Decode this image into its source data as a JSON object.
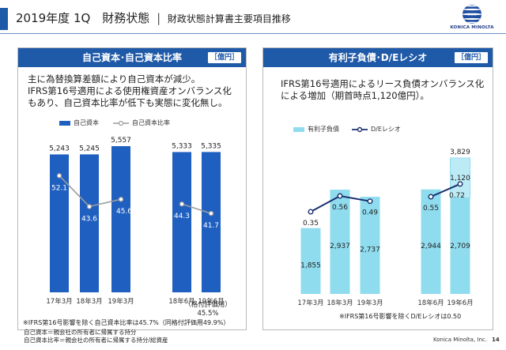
{
  "header": {
    "title": "2019年度 1Q　財務状態",
    "separator": "|",
    "subtitle": "財政状態計算書主要項目推移"
  },
  "logo": {
    "text": "KONICA MINOLTA"
  },
  "left_panel": {
    "title": "自己資本･自己資本比率",
    "unit": "［億円］",
    "text_lines": [
      "主に為替換算差額により自己資本が減少。",
      "IFRS第16号適用による使用権資産オンバランス化",
      "もあり、自己資本比率が低下も実態に変化無し。"
    ],
    "legend_bar": "自己資本",
    "legend_line": "自己資本比率",
    "note_subtitle": "（格付評価用）",
    "note_value": "45.5%",
    "footnote": "※IFRS第16号影響を除く自己資本比率は45.7%（同格付評価用49.9%）"
  },
  "right_panel": {
    "title": "有利子負債･D/Eレシオ",
    "unit": "［億円］",
    "text_lines": [
      "IFRS第16号適用によるリース負債オンバランス化",
      "による増加（期首時点1,120億円）。"
    ],
    "legend_bar": "有利子負債",
    "legend_line": "D/Eレシオ",
    "footnote": "※IFRS第16号影響を除くD/Eレシオは0.50"
  },
  "chart_data": [
    {
      "type": "bar",
      "categories": [
        "17年3月",
        "18年3月",
        "19年3月",
        "18年6月",
        "19年6月"
      ],
      "series": [
        {
          "name": "自己資本",
          "values": [
            5243,
            5245,
            5557,
            5333,
            5335
          ],
          "labels": [
            "5,243",
            "5,245",
            "5,557",
            "5,333",
            "5,335"
          ]
        },
        {
          "name": "自己資本比率",
          "type": "line",
          "values": [
            52.1,
            43.6,
            45.6,
            44.3,
            41.7
          ]
        }
      ],
      "colors": {
        "bar": "#1f5fc0",
        "line": "#9b9b9b"
      }
    },
    {
      "type": "bar",
      "categories": [
        "17年3月",
        "18年3月",
        "19年3月",
        "18年6月",
        "19年6月"
      ],
      "series": [
        {
          "name": "有利子負債",
          "values": [
            1855,
            2937,
            2737,
            2944,
            3829
          ],
          "labels": [
            "1,855",
            "2,937",
            "2,737",
            "2,944",
            "3,829"
          ],
          "ifrs16_portion": [
            0,
            0,
            0,
            0,
            1120
          ],
          "ifrs16_label": "1,120",
          "base_19jun": 2709,
          "base_19jun_label": "2,709"
        },
        {
          "name": "D/Eレシオ",
          "type": "line",
          "values": [
            0.35,
            0.56,
            0.49,
            0.55,
            0.72
          ]
        }
      ],
      "colors": {
        "bar": "#8fdcef",
        "bar_highlight": "#bcebf6",
        "line": "#1a2f6e"
      }
    }
  ],
  "footer": {
    "line1": "自己資本＝親会社の所有者に帰属する持分",
    "line2": "自己資本比率＝親会社の所有者に帰属する持分/総資産",
    "company": "Konica Minolta, Inc.",
    "page": "14"
  }
}
